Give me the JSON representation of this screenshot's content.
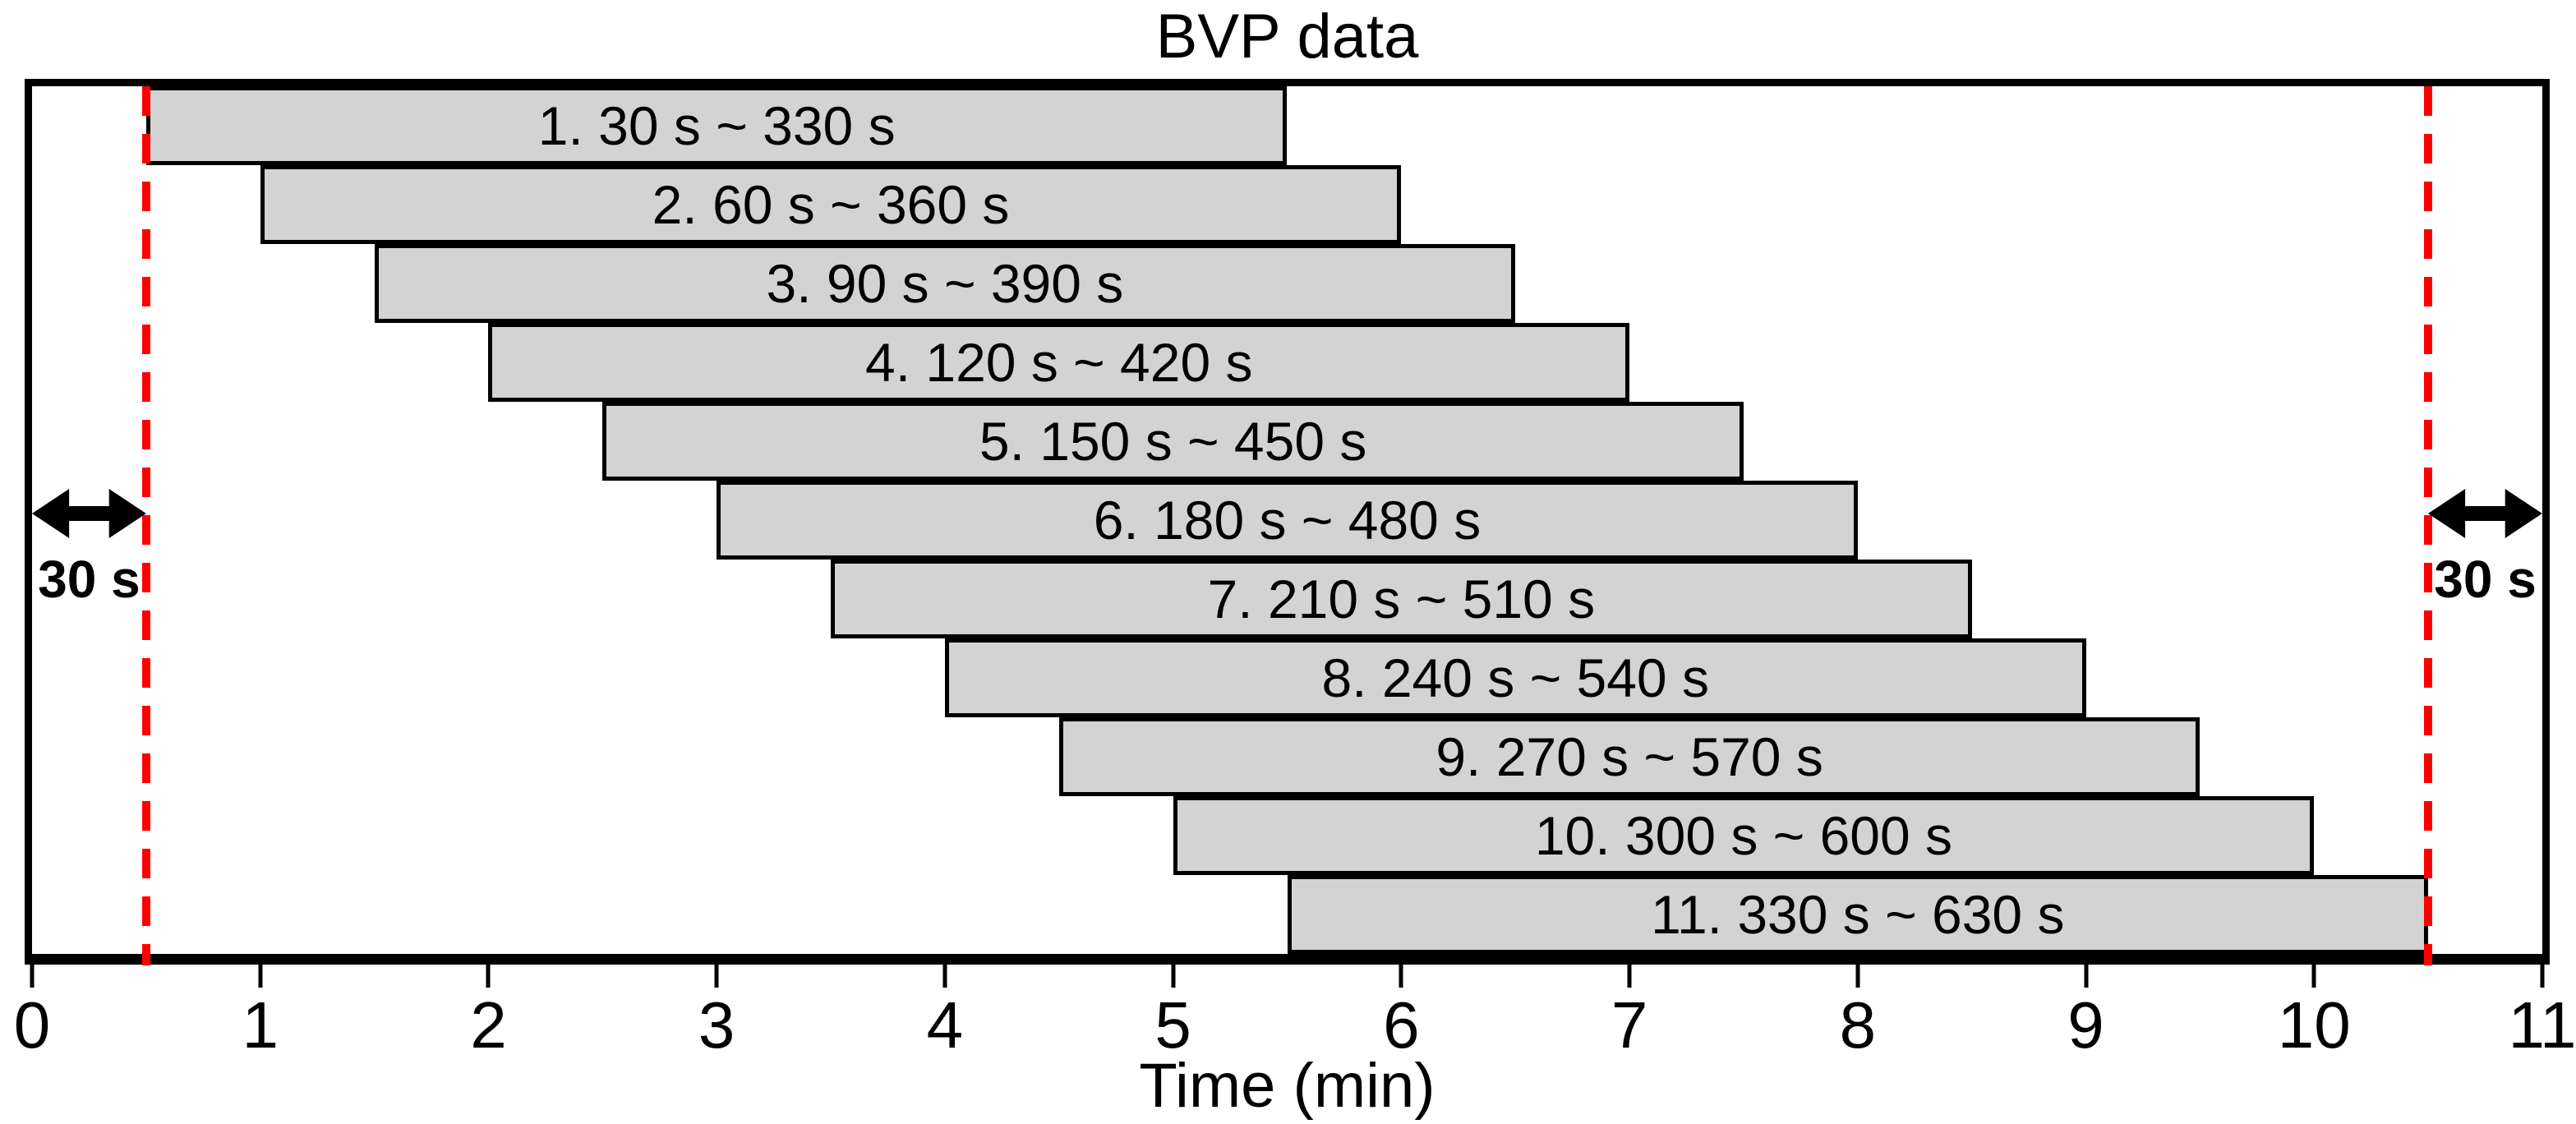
{
  "title": "BVP data",
  "xlabel": "Time (min)",
  "annotations": {
    "left_arrow_label": "30 s",
    "right_arrow_label": "30 s"
  },
  "colors": {
    "bar_fill": "#d3d3d3",
    "bar_border": "#000000",
    "boundary_line": "#ff0000",
    "arrow": "#000000",
    "text": "#000000",
    "background": "#ffffff"
  },
  "chart_data": {
    "type": "bar",
    "subtype": "horizontal-sliding-windows",
    "title": "BVP data",
    "xlabel": "Time (min)",
    "xlim": [
      0,
      11
    ],
    "x_ticks": [
      0,
      1,
      2,
      3,
      4,
      5,
      6,
      7,
      8,
      9,
      10,
      11
    ],
    "x_tick_labels": [
      "0",
      "1",
      "2",
      "3",
      "4",
      "5",
      "6",
      "7",
      "8",
      "9",
      "10",
      "11"
    ],
    "grid": false,
    "legend": "none",
    "window_length_s": 300,
    "window_step_s": 30,
    "boundary_lines_min": [
      0.5,
      10.5
    ],
    "boundary_margin_label": "30 s",
    "windows": [
      {
        "index": 1,
        "label": "1. 30 s ~ 330 s",
        "start_s": 30,
        "end_s": 330,
        "start_min": 0.5,
        "end_min": 5.5
      },
      {
        "index": 2,
        "label": "2. 60 s ~ 360 s",
        "start_s": 60,
        "end_s": 360,
        "start_min": 1.0,
        "end_min": 6.0
      },
      {
        "index": 3,
        "label": "3. 90 s ~ 390 s",
        "start_s": 90,
        "end_s": 390,
        "start_min": 1.5,
        "end_min": 6.5
      },
      {
        "index": 4,
        "label": "4. 120 s ~ 420 s",
        "start_s": 120,
        "end_s": 420,
        "start_min": 2.0,
        "end_min": 7.0
      },
      {
        "index": 5,
        "label": "5. 150 s ~ 450 s",
        "start_s": 150,
        "end_s": 450,
        "start_min": 2.5,
        "end_min": 7.5
      },
      {
        "index": 6,
        "label": "6. 180 s ~ 480 s",
        "start_s": 180,
        "end_s": 480,
        "start_min": 3.0,
        "end_min": 8.0
      },
      {
        "index": 7,
        "label": "7. 210 s ~ 510 s",
        "start_s": 210,
        "end_s": 510,
        "start_min": 3.5,
        "end_min": 8.5
      },
      {
        "index": 8,
        "label": "8. 240 s ~ 540 s",
        "start_s": 240,
        "end_s": 540,
        "start_min": 4.0,
        "end_min": 9.0
      },
      {
        "index": 9,
        "label": "9. 270 s ~ 570 s",
        "start_s": 270,
        "end_s": 570,
        "start_min": 4.5,
        "end_min": 9.5
      },
      {
        "index": 10,
        "label": "10. 300 s ~ 600 s",
        "start_s": 300,
        "end_s": 600,
        "start_min": 5.0,
        "end_min": 10.0
      },
      {
        "index": 11,
        "label": "11. 330 s ~ 630 s",
        "start_s": 330,
        "end_s": 630,
        "start_min": 5.5,
        "end_min": 10.5
      }
    ]
  }
}
